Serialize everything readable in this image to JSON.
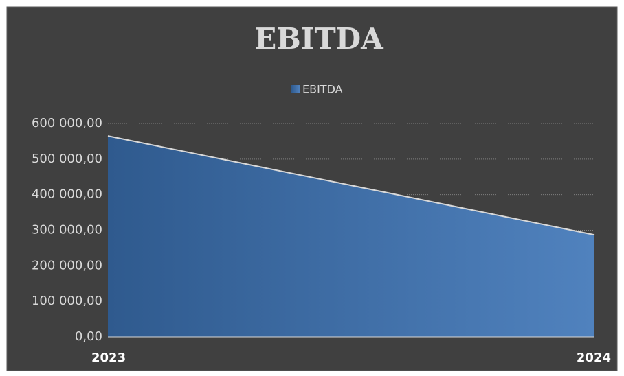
{
  "chart_data": {
    "type": "area",
    "title": "EBITDA",
    "categories": [
      "2023",
      "2024"
    ],
    "series": [
      {
        "name": "EBITDA",
        "color": "#4f81bd",
        "values": [
          565000,
          287000
        ]
      }
    ],
    "ylim": [
      0,
      600000
    ],
    "yticks": [
      {
        "value": 0,
        "label": "0,00"
      },
      {
        "value": 100000,
        "label": "100 000,00"
      },
      {
        "value": 200000,
        "label": "200 000,00"
      },
      {
        "value": 300000,
        "label": "300 000,00"
      },
      {
        "value": 400000,
        "label": "400 000,00"
      },
      {
        "value": 500000,
        "label": "500 000,00"
      },
      {
        "value": 600000,
        "label": "600 000,00"
      }
    ],
    "grid": true,
    "legend": "top"
  }
}
